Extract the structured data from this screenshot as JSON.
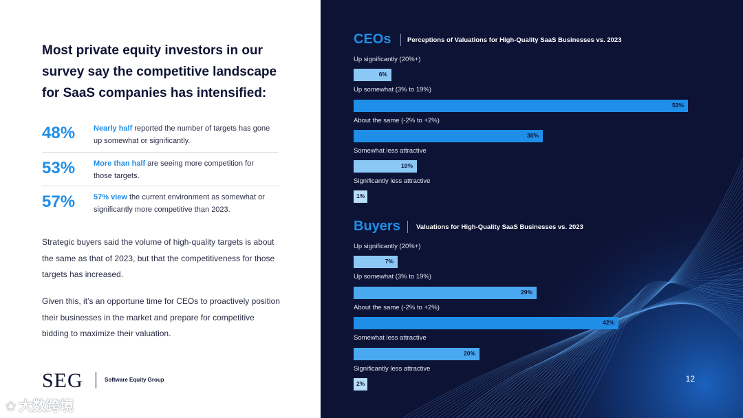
{
  "headline": "Most private equity investors in our survey say the competitive landscape for SaaS companies has intensified:",
  "stats": [
    {
      "pct": "48%",
      "bold": "Nearly half",
      "rest": " reported the number of targets has gone up somewhat or significantly."
    },
    {
      "pct": "53%",
      "bold": "More than half",
      "rest": " are seeing more competition for those targets."
    },
    {
      "pct": "57%",
      "bold": "57% view",
      "rest": " the current environment as somewhat or significantly more competitive than 2023."
    }
  ],
  "paragraphs": [
    "Strategic buyers said the volume of high-quality targets is about the same as that of 2023, but that the competitiveness for those targets has increased.",
    "Given this, it’s an opportune time for CEOs to proactively position their businesses in the market and prepare for competitive bidding to maximize their valuation."
  ],
  "logo": {
    "mark": "SEG",
    "name": "Software Equity Group"
  },
  "watermark": "大数跨境",
  "page_number": "12",
  "colors": {
    "dark_bg": "#0d1335",
    "accent": "#1f8ee8",
    "bar_strong": "#1f8ee8",
    "bar_mid": "#4aa8f0",
    "bar_light": "#8cc8f5",
    "bar_pale": "#b8def8"
  },
  "chart_data": [
    {
      "type": "bar",
      "orientation": "horizontal",
      "section": "CEOs",
      "title": "Perceptions of Valuations for High-Quality SaaS Businesses vs. 2023",
      "categories": [
        "Up significantly (20%+)",
        "Up somewhat (3% to 19%)",
        "About the same (-2% to +2%)",
        "Somewhat less attractive",
        "Significantly less attractive"
      ],
      "values": [
        6,
        53,
        30,
        10,
        1
      ],
      "labels": [
        "6%",
        "53%",
        "30%",
        "10%",
        "1%"
      ],
      "xlim": [
        0,
        53
      ],
      "unit": "%"
    },
    {
      "type": "bar",
      "orientation": "horizontal",
      "section": "Buyers",
      "title": "Valuations for High-Quality SaaS Businesses vs. 2023",
      "categories": [
        "Up significantly (20%+)",
        "Up somewhat (3% to 19%)",
        "About the same (-2% to +2%)",
        "Somewhat less attractive",
        "Significantly less attractive"
      ],
      "values": [
        7,
        29,
        42,
        20,
        2
      ],
      "labels": [
        "7%",
        "29%",
        "42%",
        "20%",
        "2%"
      ],
      "xlim": [
        0,
        53
      ],
      "unit": "%"
    }
  ]
}
